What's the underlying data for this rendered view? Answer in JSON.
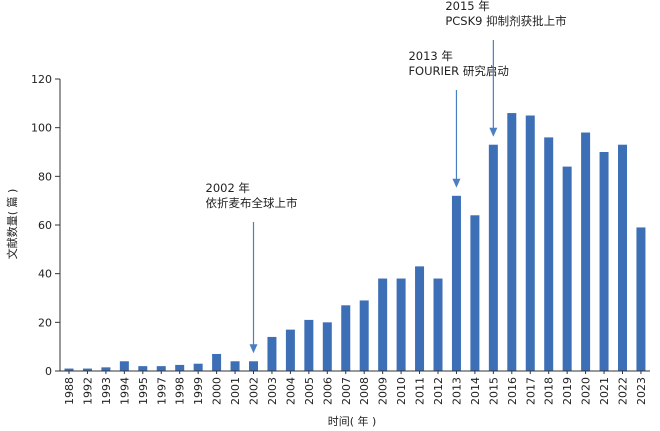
{
  "chart_data": {
    "type": "bar",
    "xlabel": "时间( 年 )",
    "ylabel": "文献数量( 篇 )",
    "ylim": [
      0,
      120
    ],
    "yticks": [
      0,
      20,
      40,
      60,
      80,
      100,
      120
    ],
    "grid": false,
    "bar_color": "#3d6fb6",
    "annotation_color": "#4a7fc1",
    "categories": [
      "1988",
      "1992",
      "1993",
      "1994",
      "1995",
      "1997",
      "1998",
      "1999",
      "2000",
      "2001",
      "2002",
      "2003",
      "2004",
      "2005",
      "2006",
      "2007",
      "2008",
      "2009",
      "2010",
      "2011",
      "2012",
      "2013",
      "2014",
      "2015",
      "2016",
      "2017",
      "2018",
      "2019",
      "2020",
      "2021",
      "2022",
      "2023"
    ],
    "values": [
      1,
      1,
      1.5,
      4,
      2,
      2,
      2.5,
      3,
      7,
      4,
      4,
      14,
      17,
      21,
      20,
      27,
      29,
      38,
      38,
      43,
      38,
      72,
      64,
      93,
      106,
      105,
      96,
      84,
      98,
      90,
      93,
      59
    ],
    "annotations": [
      {
        "category": "2002",
        "lines": [
          "2002 年",
          "依折麦布全球上市"
        ]
      },
      {
        "category": "2013",
        "lines": [
          "2013 年",
          "FOURIER 研究启动"
        ]
      },
      {
        "category": "2015",
        "lines": [
          "2015 年",
          "PCSK9 抑制剂获批上市"
        ]
      }
    ]
  }
}
